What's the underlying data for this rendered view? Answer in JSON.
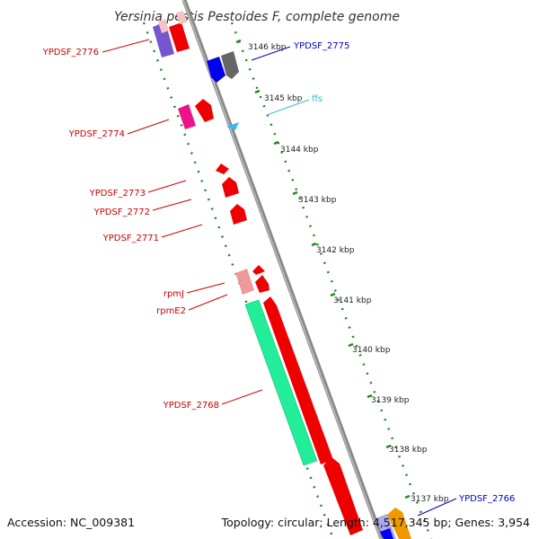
{
  "title": "Yersinia pestis Pestoides F, complete genome",
  "footer": {
    "accession": "Accession: NC_009381",
    "topology": "Topology: circular; Length: 4,517,345 bp; Genes: 3,954"
  },
  "colors": {
    "label_red": "#cc0000",
    "label_blue": "#0000cc",
    "label_cyan": "#33bbdd",
    "backbone": "#888888",
    "tick": "#228822"
  },
  "kbp_labels": [
    "3146 kbp",
    "3145 kbp",
    "3144 kbp",
    "3143 kbp",
    "3142 kbp",
    "3141 kbp",
    "3140 kbp",
    "3139 kbp",
    "3138 kbp",
    "3137 kbp"
  ],
  "gene_labels": [
    {
      "text": "YPDSF_2776",
      "color": "red"
    },
    {
      "text": "YPDSF_2775",
      "color": "blue"
    },
    {
      "text": "ffs",
      "color": "cyan"
    },
    {
      "text": "YPDSF_2774",
      "color": "red"
    },
    {
      "text": "YPDSF_2773",
      "color": "red"
    },
    {
      "text": "YPDSF_2772",
      "color": "red"
    },
    {
      "text": "YPDSF_2771",
      "color": "red"
    },
    {
      "text": "rpmJ",
      "color": "red"
    },
    {
      "text": "rpmE2",
      "color": "red"
    },
    {
      "text": "YPDSF_2768",
      "color": "red"
    },
    {
      "text": "YPDSF_2766",
      "color": "blue"
    }
  ]
}
